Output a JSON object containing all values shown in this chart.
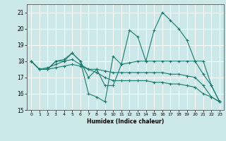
{
  "xlabel": "Humidex (Indice chaleur)",
  "ylabel": "",
  "background_color": "#cce8e8",
  "grid_color": "#ffffff",
  "line_color": "#1a7a6e",
  "xlim": [
    -0.5,
    23.5
  ],
  "ylim": [
    15,
    21.5
  ],
  "yticks": [
    15,
    16,
    17,
    18,
    19,
    20,
    21
  ],
  "xticks": [
    0,
    1,
    2,
    3,
    4,
    5,
    6,
    7,
    8,
    9,
    10,
    11,
    12,
    13,
    14,
    15,
    16,
    17,
    18,
    19,
    20,
    21,
    22,
    23
  ],
  "series": [
    [
      18.0,
      17.5,
      17.5,
      18.0,
      18.0,
      18.5,
      18.0,
      16.0,
      15.8,
      15.5,
      18.3,
      17.8,
      19.9,
      19.5,
      18.0,
      19.9,
      21.0,
      20.5,
      20.0,
      19.3,
      18.0,
      17.2,
      16.5,
      15.5
    ],
    [
      18.0,
      17.5,
      17.5,
      18.0,
      18.1,
      18.5,
      18.0,
      17.0,
      17.5,
      16.5,
      16.5,
      17.8,
      17.9,
      18.0,
      18.0,
      18.0,
      18.0,
      18.0,
      18.0,
      18.0,
      18.0,
      18.0,
      16.5,
      15.5
    ],
    [
      18.0,
      17.5,
      17.6,
      17.8,
      18.0,
      18.1,
      17.8,
      17.5,
      17.5,
      17.4,
      17.3,
      17.3,
      17.3,
      17.3,
      17.3,
      17.3,
      17.3,
      17.2,
      17.2,
      17.1,
      17.0,
      16.5,
      15.8,
      15.5
    ],
    [
      18.0,
      17.5,
      17.5,
      17.6,
      17.7,
      17.8,
      17.7,
      17.5,
      17.3,
      17.0,
      16.8,
      16.8,
      16.8,
      16.8,
      16.8,
      16.7,
      16.7,
      16.6,
      16.6,
      16.5,
      16.4,
      16.0,
      15.8,
      15.5
    ]
  ]
}
